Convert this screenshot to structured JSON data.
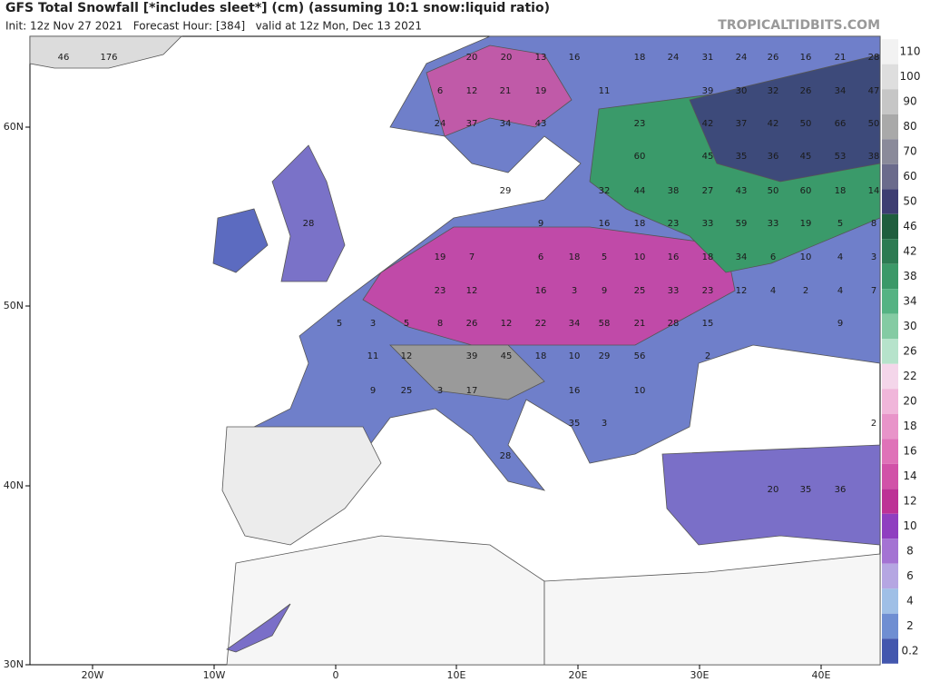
{
  "header": {
    "title": "GFS Total Snowfall [*includes sleet*] (cm) (assuming 10:1 snow:liquid ratio)",
    "subtitle": "Init: 12z Nov 27 2021   Forecast Hour: [384]   valid at 12z Mon, Dec 13 2021",
    "brand": "TROPICALTIDBITS.COM"
  },
  "axes": {
    "lat_labels": [
      "60N",
      "50N",
      "40N",
      "30N"
    ],
    "lon_labels": [
      "20W",
      "10W",
      "0",
      "10E",
      "20E",
      "30E",
      "40E"
    ]
  },
  "legend": {
    "entries": [
      {
        "value": 110,
        "color": "#f2f2f2"
      },
      {
        "value": 100,
        "color": "#dedede"
      },
      {
        "value": 90,
        "color": "#c6c6c6"
      },
      {
        "value": 80,
        "color": "#a9a9a9"
      },
      {
        "value": 70,
        "color": "#8a8a9a"
      },
      {
        "value": 60,
        "color": "#6b6b8c"
      },
      {
        "value": 50,
        "color": "#3d3d72"
      },
      {
        "value": 46,
        "color": "#1f5e3e"
      },
      {
        "value": 42,
        "color": "#2c7b52"
      },
      {
        "value": 38,
        "color": "#3b9968"
      },
      {
        "value": 34,
        "color": "#55b383"
      },
      {
        "value": 30,
        "color": "#84cba3"
      },
      {
        "value": 26,
        "color": "#b6e3cb"
      },
      {
        "value": 22,
        "color": "#f4d6ea"
      },
      {
        "value": 20,
        "color": "#f0b6da"
      },
      {
        "value": 18,
        "color": "#e894c9"
      },
      {
        "value": 16,
        "color": "#df72b8"
      },
      {
        "value": 14,
        "color": "#d152a8"
      },
      {
        "value": 12,
        "color": "#bd3296"
      },
      {
        "value": 10,
        "color": "#8f3fc0"
      },
      {
        "value": 8,
        "color": "#a473d3"
      },
      {
        "value": 6,
        "color": "#b5a6e2"
      },
      {
        "value": 4,
        "color": "#9fbfe6"
      },
      {
        "value": 2,
        "color": "#6f8ed2"
      },
      {
        "value": 0.2,
        "color": "#4357ae"
      }
    ]
  },
  "map_labels": [
    46,
    176,
    20,
    20,
    13,
    16,
    18,
    24,
    31,
    24,
    26,
    16,
    21,
    28,
    6,
    12,
    21,
    19,
    11,
    39,
    30,
    32,
    26,
    34,
    47,
    24,
    37,
    34,
    43,
    23,
    42,
    37,
    42,
    50,
    66,
    50,
    60,
    45,
    35,
    36,
    45,
    53,
    38,
    29,
    32,
    44,
    38,
    27,
    43,
    50,
    60,
    18,
    14,
    28,
    9,
    16,
    18,
    23,
    33,
    59,
    33,
    19,
    5,
    8,
    19,
    7,
    6,
    18,
    5,
    10,
    16,
    18,
    34,
    6,
    10,
    4,
    3,
    23,
    12,
    16,
    3,
    9,
    25,
    33,
    23,
    12,
    4,
    2,
    4,
    7,
    5,
    3,
    5,
    8,
    26,
    12,
    22,
    34,
    58,
    21,
    28,
    15,
    9,
    11,
    12,
    39,
    45,
    18,
    10,
    29,
    56,
    2,
    9,
    25,
    3,
    17,
    16,
    10,
    35,
    3,
    2,
    28,
    20,
    35,
    36
  ]
}
